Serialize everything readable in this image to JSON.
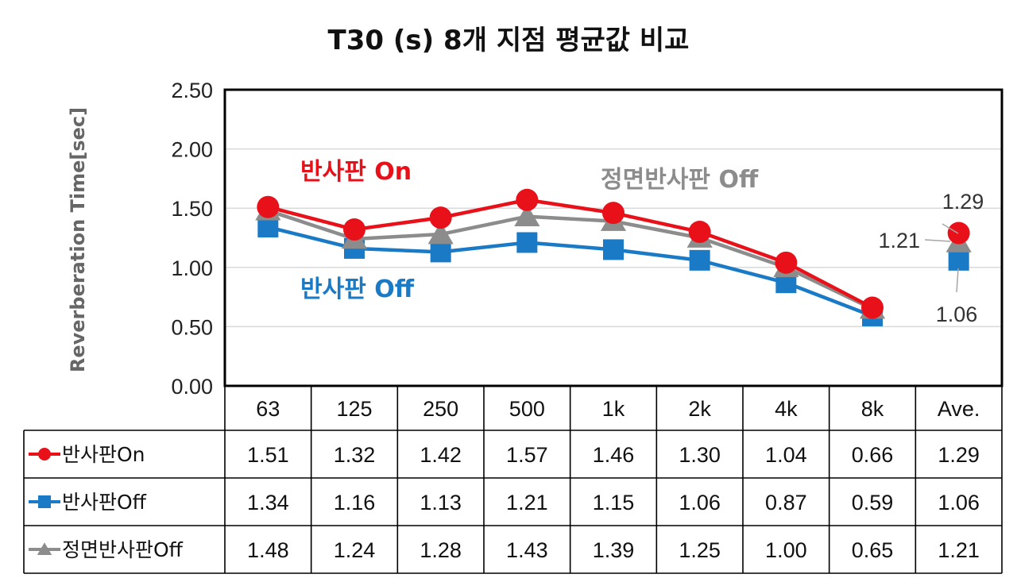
{
  "chart_data": {
    "type": "line",
    "title": "T30 (s) 8개 지점 평균값 비교",
    "ylabel": "Reverberation Time[sec]",
    "ylim": [
      0,
      2.5
    ],
    "yticks": [
      "0.00",
      "0.50",
      "1.00",
      "1.50",
      "2.00",
      "2.50"
    ],
    "grid": true,
    "categories": [
      "63",
      "125",
      "250",
      "500",
      "1k",
      "2k",
      "4k",
      "8k",
      "Ave."
    ],
    "series": [
      {
        "name": "반사판On",
        "color": "#e8111a",
        "marker": "circle",
        "values": [
          1.51,
          1.32,
          1.42,
          1.57,
          1.46,
          1.3,
          1.04,
          0.66,
          1.29
        ],
        "cells": [
          "1.51",
          "1.32",
          "1.42",
          "1.57",
          "1.46",
          "1.30",
          "1.04",
          "0.66",
          "1.29"
        ]
      },
      {
        "name": "반사판Off",
        "color": "#1b7ac5",
        "marker": "square",
        "values": [
          1.34,
          1.16,
          1.13,
          1.21,
          1.15,
          1.06,
          0.87,
          0.59,
          1.06
        ],
        "cells": [
          "1.34",
          "1.16",
          "1.13",
          "1.21",
          "1.15",
          "1.06",
          "0.87",
          "0.59",
          "1.06"
        ]
      },
      {
        "name": "정면반사판Off",
        "color": "#8c8c8c",
        "marker": "triangle",
        "values": [
          1.48,
          1.24,
          1.28,
          1.43,
          1.39,
          1.25,
          1.0,
          0.65,
          1.21
        ],
        "cells": [
          "1.48",
          "1.24",
          "1.28",
          "1.43",
          "1.39",
          "1.25",
          "1.00",
          "0.65",
          "1.21"
        ]
      }
    ],
    "annotations": [
      {
        "text": "반사판 On",
        "color": "#e8111a"
      },
      {
        "text": "정면반사판 Off",
        "color": "#8c8c8c"
      },
      {
        "text": "반사판 Off",
        "color": "#1b7ac5"
      }
    ],
    "ave_labels": [
      "1.29",
      "1.21",
      "1.06"
    ]
  }
}
